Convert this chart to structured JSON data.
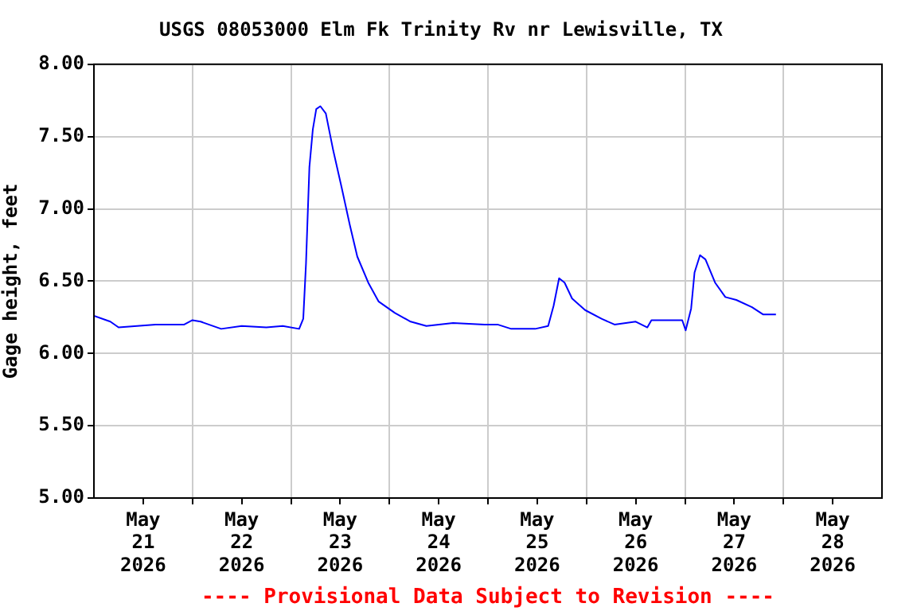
{
  "chart_data": {
    "type": "line",
    "title": "USGS 08053000 Elm Fk Trinity Rv nr Lewisville, TX",
    "ylabel": "Gage height, feet",
    "annotations": [
      "---- Provisional Data Subject to Revision ----"
    ],
    "x": [
      "2026-05-21T00:00",
      "2026-05-21T04:00",
      "2026-05-21T06:00",
      "2026-05-21T15:00",
      "2026-05-21T22:00",
      "2026-05-22T00:00",
      "2026-05-22T02:00",
      "2026-05-22T07:00",
      "2026-05-22T12:00",
      "2026-05-22T18:00",
      "2026-05-22T22:00",
      "2026-05-23T02:00",
      "2026-05-23T03:00",
      "2026-05-23T03:40",
      "2026-05-23T04:00",
      "2026-05-23T04:30",
      "2026-05-23T05:20",
      "2026-05-23T06:10",
      "2026-05-23T07:10",
      "2026-05-23T08:30",
      "2026-05-23T10:20",
      "2026-05-23T12:20",
      "2026-05-23T14:20",
      "2026-05-23T16:10",
      "2026-05-23T18:50",
      "2026-05-23T21:20",
      "2026-05-24T01:20",
      "2026-05-24T05:10",
      "2026-05-24T09:00",
      "2026-05-24T15:30",
      "2026-05-24T23:10",
      "2026-05-25T02:20",
      "2026-05-25T05:40",
      "2026-05-25T11:30",
      "2026-05-25T14:40",
      "2026-05-25T16:00",
      "2026-05-25T17:20",
      "2026-05-25T18:40",
      "2026-05-25T20:30",
      "2026-05-25T23:40",
      "2026-05-26T03:40",
      "2026-05-26T06:50",
      "2026-05-26T12:00",
      "2026-05-26T14:50",
      "2026-05-26T15:50",
      "2026-05-26T23:20",
      "2026-05-27T00:10",
      "2026-05-27T01:30",
      "2026-05-27T02:20",
      "2026-05-27T03:40",
      "2026-05-27T05:00",
      "2026-05-27T07:20",
      "2026-05-27T09:50",
      "2026-05-27T12:30",
      "2026-05-27T16:20",
      "2026-05-27T19:00",
      "2026-05-27T22:10"
    ],
    "series": [
      {
        "color": "#0000ff",
        "values": [
          6.26,
          6.22,
          6.18,
          6.2,
          6.2,
          6.23,
          6.22,
          6.17,
          6.19,
          6.18,
          6.19,
          6.17,
          6.24,
          6.62,
          6.89,
          7.29,
          7.55,
          7.69,
          7.71,
          7.66,
          7.4,
          7.15,
          6.89,
          6.67,
          6.49,
          6.36,
          6.28,
          6.22,
          6.19,
          6.21,
          6.2,
          6.2,
          6.17,
          6.17,
          6.19,
          6.33,
          6.52,
          6.49,
          6.38,
          6.3,
          6.24,
          6.2,
          6.22,
          6.18,
          6.23,
          6.23,
          6.16,
          6.31,
          6.56,
          6.68,
          6.65,
          6.49,
          6.39,
          6.37,
          6.32,
          6.27,
          6.27
        ]
      }
    ],
    "xlim": [
      "2026-05-21T00:00",
      "2026-05-29T00:00"
    ],
    "xticks": [
      {
        "value": "2026-05-21T12:00",
        "label": "May 21 2026"
      },
      {
        "value": "2026-05-22T00:00",
        "label": null
      },
      {
        "value": "2026-05-22T12:00",
        "label": "May 22 2026"
      },
      {
        "value": "2026-05-23T00:00",
        "label": null
      },
      {
        "value": "2026-05-23T12:00",
        "label": "May 23 2026"
      },
      {
        "value": "2026-05-24T00:00",
        "label": null
      },
      {
        "value": "2026-05-24T12:00",
        "label": "May 24 2026"
      },
      {
        "value": "2026-05-25T00:00",
        "label": null
      },
      {
        "value": "2026-05-25T12:00",
        "label": "May 25 2026"
      },
      {
        "value": "2026-05-26T00:00",
        "label": null
      },
      {
        "value": "2026-05-26T12:00",
        "label": "May 26 2026"
      },
      {
        "value": "2026-05-27T00:00",
        "label": null
      },
      {
        "value": "2026-05-27T12:00",
        "label": "May 27 2026"
      },
      {
        "value": "2026-05-28T00:00",
        "label": null
      },
      {
        "value": "2026-05-28T12:00",
        "label": "May 28 2026"
      }
    ],
    "ylim": [
      5,
      8
    ],
    "yticks": [
      {
        "value": 5,
        "label": "5.00"
      },
      {
        "value": 5.5,
        "label": "5.50"
      },
      {
        "value": 6,
        "label": "6.00"
      },
      {
        "value": 6.5,
        "label": "6.50"
      },
      {
        "value": 7,
        "label": "7.00"
      },
      {
        "value": 7.5,
        "label": "7.50"
      },
      {
        "value": 8,
        "label": "8.00"
      }
    ],
    "grid": true,
    "legend": false,
    "marker": "none",
    "line_style": "solid"
  }
}
